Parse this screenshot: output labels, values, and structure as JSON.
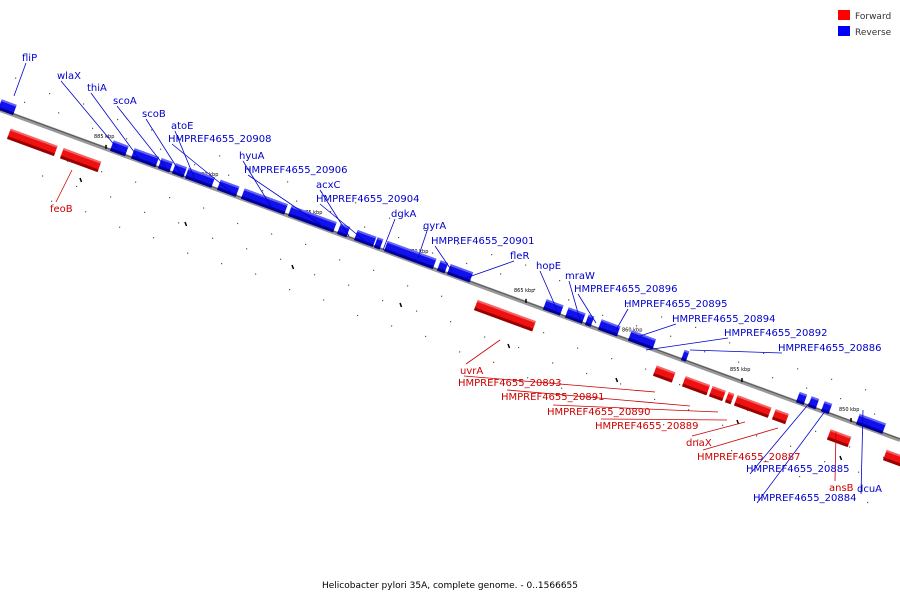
{
  "caption": "Helicobacter pylori 35A, complete genome. - 0..1566655",
  "legend": [
    {
      "label": "Forward",
      "color": "#ff0000"
    },
    {
      "label": "Reverse",
      "color": "#0000ff"
    }
  ],
  "colors": {
    "forward": "#ff0000",
    "reverse": "#0000ff",
    "axis": "#888888"
  },
  "ticks": [
    {
      "label": "885 kbp"
    },
    {
      "label": "880 kbp"
    },
    {
      "label": "875 kbp"
    },
    {
      "label": "870 kbp"
    },
    {
      "label": "865 kbp"
    },
    {
      "label": "860 kbp"
    },
    {
      "label": "855 kbp"
    },
    {
      "label": "850 kbp"
    }
  ],
  "reverse_labels": [
    {
      "text": "fliP"
    },
    {
      "text": "wlaX"
    },
    {
      "text": "thiA"
    },
    {
      "text": "scoA"
    },
    {
      "text": "scoB"
    },
    {
      "text": "atoE"
    },
    {
      "text": "HMPREF4655_20908"
    },
    {
      "text": "hyuA"
    },
    {
      "text": "HMPREF4655_20906"
    },
    {
      "text": "acxC"
    },
    {
      "text": "HMPREF4655_20904"
    },
    {
      "text": "dgkA"
    },
    {
      "text": "gyrA"
    },
    {
      "text": "HMPREF4655_20901"
    },
    {
      "text": "fleR"
    },
    {
      "text": "hopE"
    },
    {
      "text": "mraW"
    },
    {
      "text": "HMPREF4655_20896"
    },
    {
      "text": "HMPREF4655_20895"
    },
    {
      "text": "HMPREF4655_20894"
    },
    {
      "text": "HMPREF4655_20892"
    },
    {
      "text": "HMPREF4655_20886"
    },
    {
      "text": "HMPREF4655_20885"
    },
    {
      "text": "HMPREF4655_20884"
    },
    {
      "text": "dcuA"
    }
  ],
  "forward_labels": [
    {
      "text": "feoB"
    },
    {
      "text": "uvrA"
    },
    {
      "text": "HMPREF4655_20893"
    },
    {
      "text": "HMPREF4655_20891"
    },
    {
      "text": "HMPREF4655_20890"
    },
    {
      "text": "HMPREF4655_20889"
    },
    {
      "text": "dnaX"
    },
    {
      "text": "HMPREF4655_20887"
    },
    {
      "text": "ansB"
    }
  ]
}
